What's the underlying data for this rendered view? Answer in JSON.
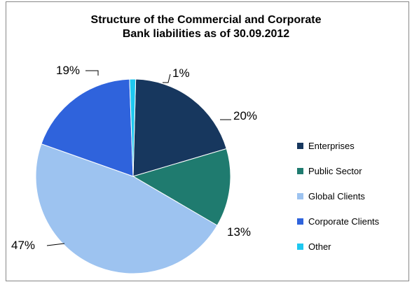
{
  "chart_data": {
    "type": "pie",
    "title_lines": [
      "Structure of the Commercial  and Corporate",
      "Bank liabilities as of 30.09.2012"
    ],
    "slices": [
      {
        "name": "Enterprises",
        "value": 20,
        "label": "20%",
        "color": "#17375E"
      },
      {
        "name": "Public Sector",
        "value": 13,
        "label": "13%",
        "color": "#1F7B6F"
      },
      {
        "name": "Global Clients",
        "value": 47,
        "label": "47%",
        "color": "#9DC3F0"
      },
      {
        "name": "Corporate Clients",
        "value": 19,
        "label": "19%",
        "color": "#2F63DC"
      },
      {
        "name": "Other",
        "value": 1,
        "label": "1%",
        "color": "#1EC8F0"
      }
    ],
    "legend_position": "right"
  }
}
